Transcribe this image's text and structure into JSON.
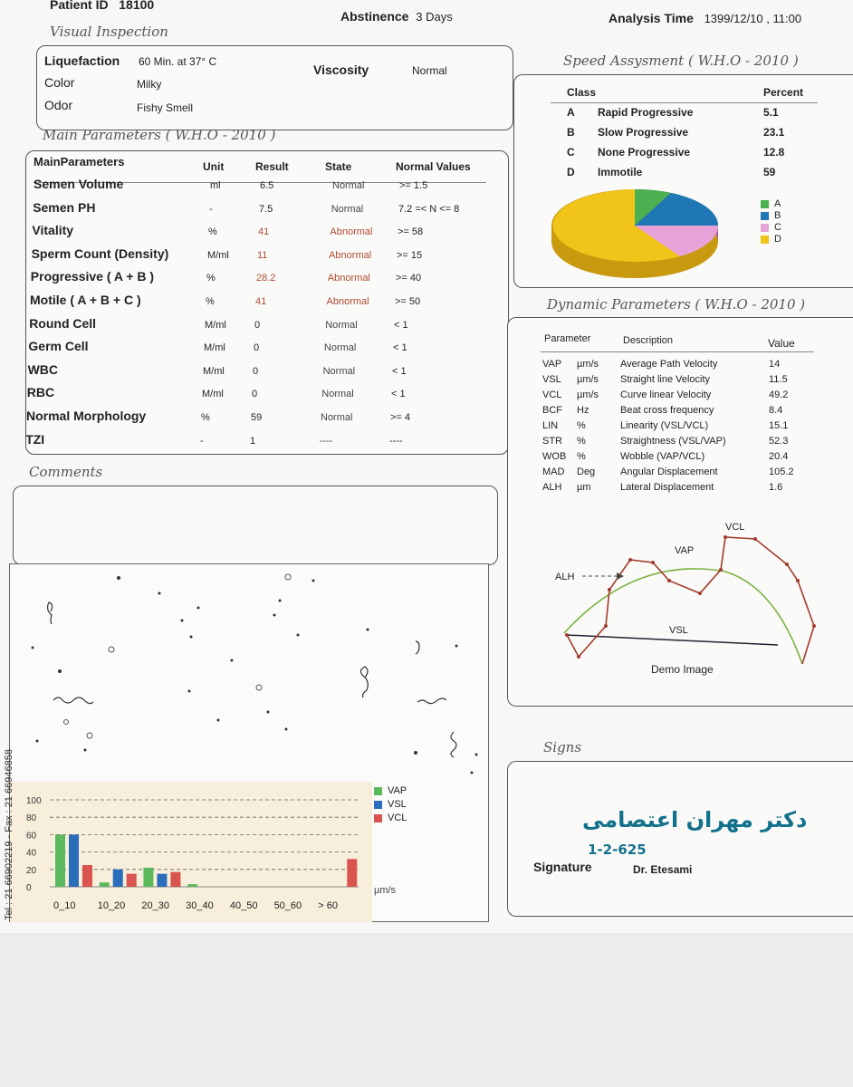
{
  "header": {
    "patient_id_label": "Patient ID",
    "patient_id": "18100",
    "abstinence_label": "Abstinence",
    "abstinence_value": "3 Days",
    "analysis_time_label": "Analysis Time",
    "analysis_time": "1399/12/10 , 11:00"
  },
  "visual": {
    "title": "Visual Inspection",
    "liquefaction_label": "Liquefaction",
    "liquefaction_value": "60 Min. at 37° C",
    "viscosity_label": "Viscosity",
    "viscosity_value": "Normal",
    "color_label": "Color",
    "color_value": "Milky",
    "odor_label": "Odor",
    "odor_value": "Fishy Smell"
  },
  "main": {
    "title": "Main Parameters ( W.H.O - 2010 )",
    "headers": [
      "MainParameters",
      "Unit",
      "Result",
      "State",
      "Normal Values"
    ],
    "rows": [
      [
        "Semen Volume",
        "ml",
        "6.5",
        "Normal",
        ">= 1.5"
      ],
      [
        "Semen PH",
        "-",
        "7.5",
        "Normal",
        "7.2 =< N <= 8"
      ],
      [
        "Vitality",
        "%",
        "41",
        "Abnormal",
        ">= 58"
      ],
      [
        "Sperm Count (Density)",
        "M/ml",
        "11",
        "Abnormal",
        ">= 15"
      ],
      [
        "Progressive ( A + B )",
        "%",
        "28.2",
        "Abnormal",
        ">= 40"
      ],
      [
        "Motile ( A + B + C )",
        "%",
        "41",
        "Abnormal",
        ">= 50"
      ],
      [
        "Round Cell",
        "M/ml",
        "0",
        "Normal",
        "< 1"
      ],
      [
        "Germ Cell",
        "M/ml",
        "0",
        "Normal",
        "< 1"
      ],
      [
        "WBC",
        "M/ml",
        "0",
        "Normal",
        "< 1"
      ],
      [
        "RBC",
        "M/ml",
        "0",
        "Normal",
        "< 1"
      ],
      [
        "Normal Morphology",
        "%",
        "59",
        "Normal",
        ">= 4"
      ],
      [
        "TZI",
        "-",
        "1",
        "----",
        "----"
      ]
    ]
  },
  "comments": {
    "title": "Comments"
  },
  "speed": {
    "title": "Speed Assysment ( W.H.O - 2010 )",
    "class_header": "Class",
    "percent_header": "Percent",
    "rows": [
      [
        "A",
        "Rapid Progressive",
        "5.1"
      ],
      [
        "B",
        "Slow Progressive",
        "23.1"
      ],
      [
        "C",
        "None Progressive",
        "12.8"
      ],
      [
        "D",
        "Immotile",
        "59"
      ]
    ],
    "legend": [
      "A",
      "B",
      "C",
      "D"
    ],
    "colors": [
      "#4caf50",
      "#1f77b4",
      "#e377c2",
      "#f0c419"
    ]
  },
  "dynamic": {
    "title": "Dynamic Parameters ( W.H.O - 2010 )",
    "headers": [
      "Parameter",
      "Description",
      "Value"
    ],
    "rows": [
      [
        "VAP",
        "µm/s",
        "Average Path Velocity",
        "14"
      ],
      [
        "VSL",
        "µm/s",
        "Straight line Velocity",
        "11.5"
      ],
      [
        "VCL",
        "µm/s",
        "Curve linear Velocity",
        "49.2"
      ],
      [
        "BCF",
        "Hz",
        "Beat cross frequency",
        "8.4"
      ],
      [
        "LIN",
        "%",
        "Linearity (VSL/VCL)",
        "15.1"
      ],
      [
        "STR",
        "%",
        "Straightness (VSL/VAP)",
        "52.3"
      ],
      [
        "WOB",
        "%",
        "Wobble (VAP/VCL)",
        "20.4"
      ],
      [
        "MAD",
        "Deg",
        "Angular Displacement",
        "105.2"
      ],
      [
        "ALH",
        "µm",
        "Lateral Displacement",
        "1.6"
      ]
    ],
    "demo": {
      "vcl": "VCL",
      "vap": "VAP",
      "alh": "ALH",
      "vsl": "VSL",
      "caption": "Demo Image"
    }
  },
  "signs": {
    "title": "Signs",
    "signature_label": "Signature",
    "doctor": "Dr. Etesami",
    "stamp_name": "دکتر مهران اعتصامی",
    "stamp_number": "1-2-625"
  },
  "side_text": "Tel : 21 66902219 - Fax : 21 66946858",
  "chart_data": {
    "type": "bar",
    "categories": [
      "0_10",
      "10_20",
      "20_30",
      "30_40",
      "40_50",
      "50_60",
      "> 60"
    ],
    "series": [
      {
        "name": "VAP",
        "color": "#5cb85c",
        "values": [
          60,
          5,
          22,
          3,
          0,
          0,
          0
        ]
      },
      {
        "name": "VSL",
        "color": "#2a6ebb",
        "values": [
          60,
          20,
          15,
          0,
          0,
          0,
          0
        ]
      },
      {
        "name": "VCL",
        "color": "#d9534f",
        "values": [
          25,
          15,
          17,
          0,
          0,
          0,
          32
        ]
      }
    ],
    "yticks": [
      "100",
      "80",
      "60",
      "40",
      "20",
      "0"
    ],
    "ylim": [
      0,
      100
    ],
    "xunit": "µm/s"
  }
}
